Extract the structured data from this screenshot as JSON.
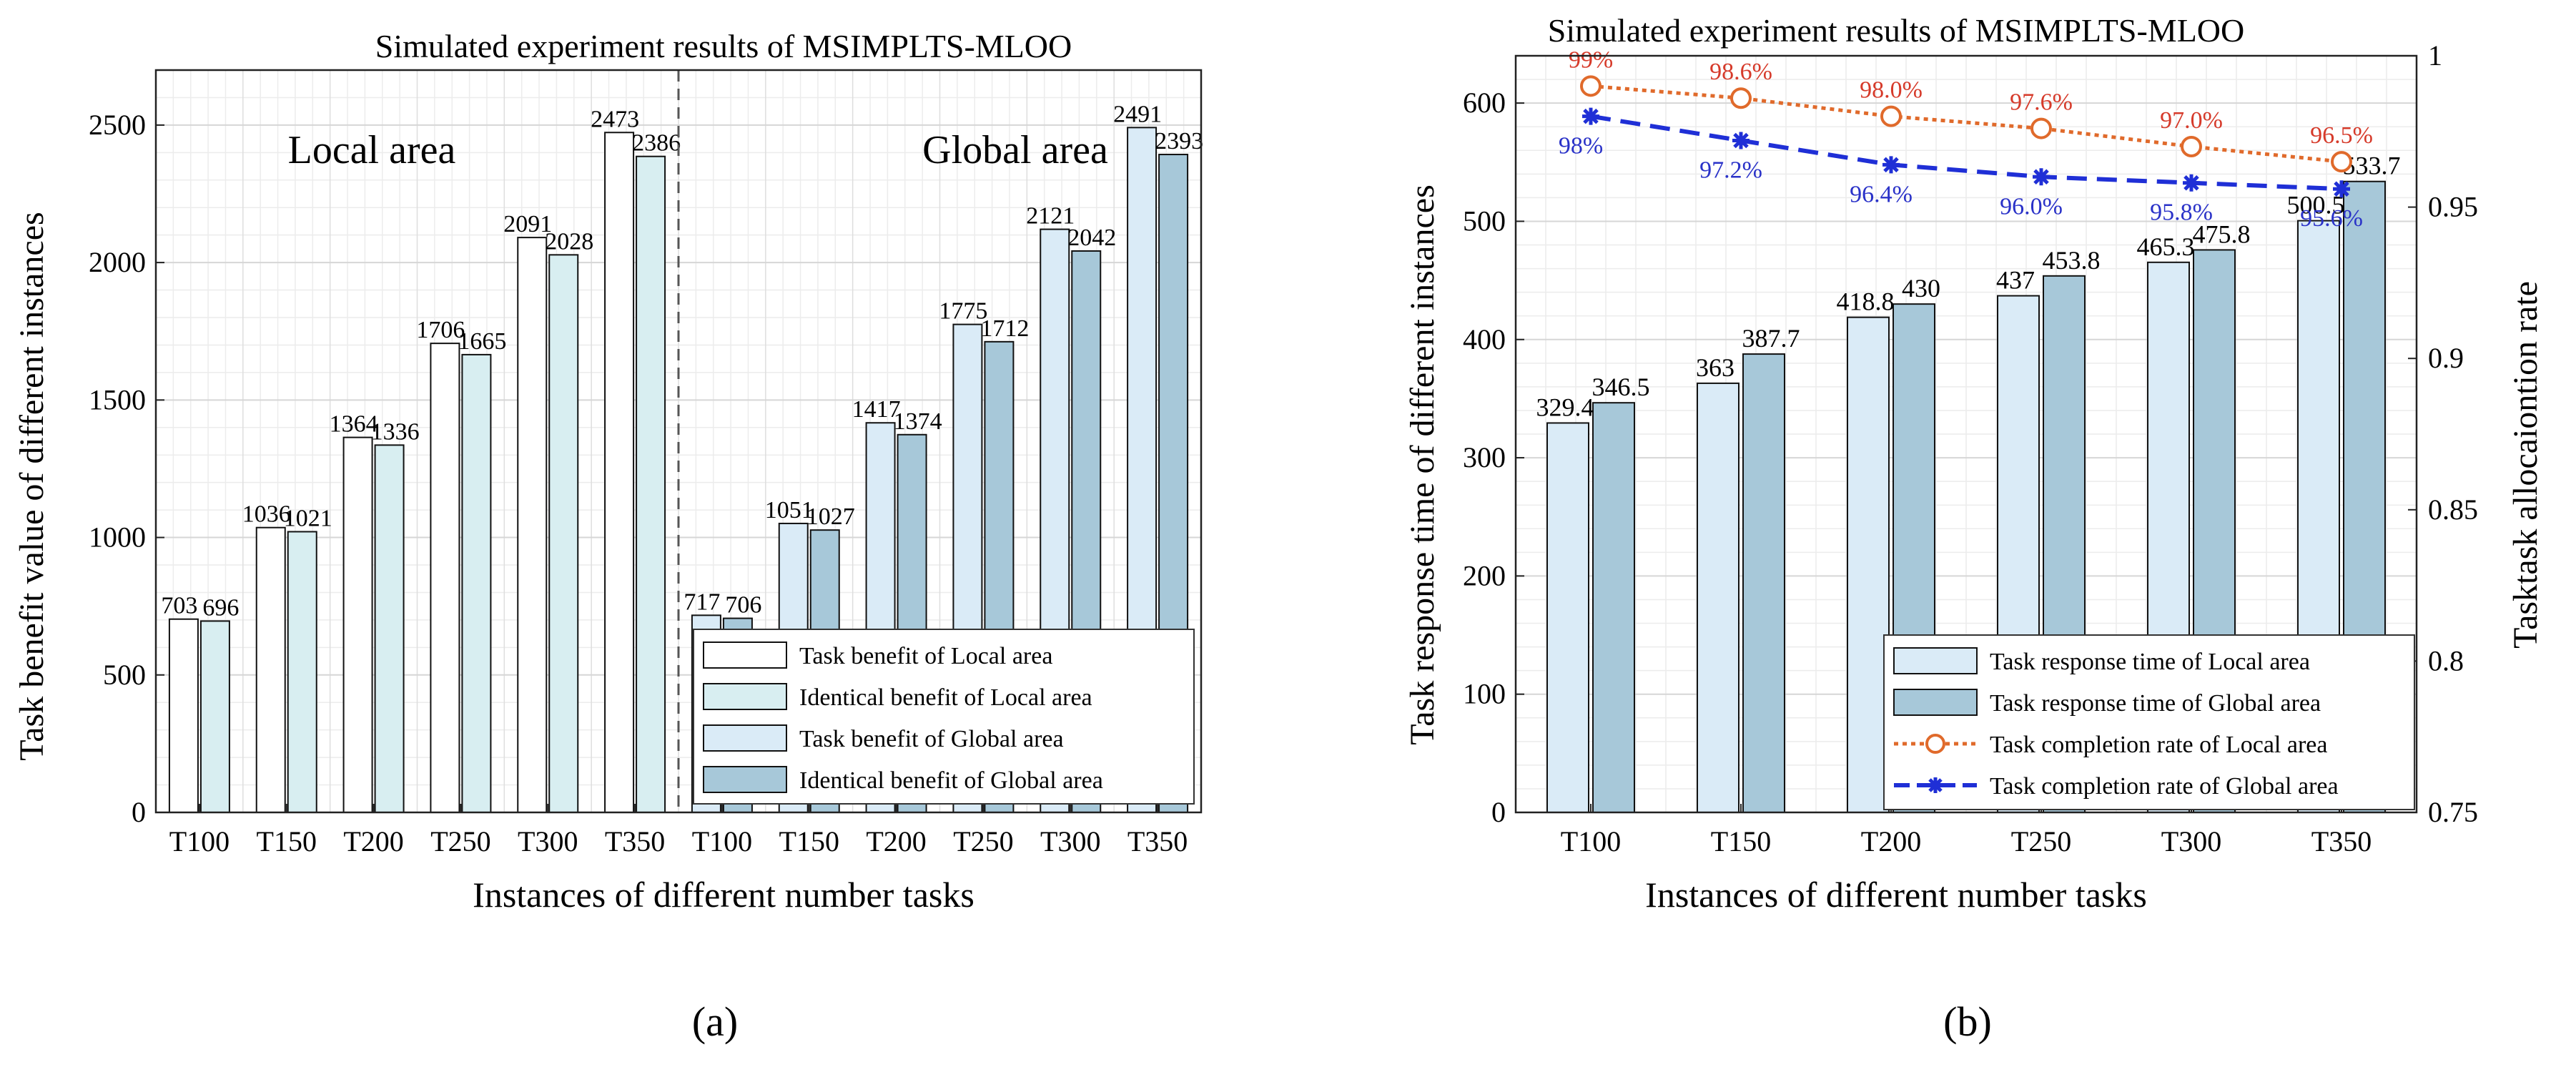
{
  "chart_data": [
    {
      "type": "bar",
      "panel_label": "(a)",
      "title": "Simulated experiment results of MSIMPLTS-MLOO",
      "xlabel": "Instances of different number tasks",
      "ylabel": "Task benefit value of different instances",
      "ylim": [
        0,
        2700
      ],
      "yticks": [
        0,
        500,
        1000,
        1500,
        2000,
        2500
      ],
      "grid": true,
      "categories": [
        "T100",
        "T150",
        "T200",
        "T250",
        "T300",
        "T350",
        "T100",
        "T150",
        "T200",
        "T250",
        "T300",
        "T350"
      ],
      "region_labels": [
        "Local area",
        "Global area"
      ],
      "series": [
        {
          "name": "Task benefit of Local area",
          "color": "#ffffff",
          "values": [
            703,
            1036,
            1364,
            1706,
            2091,
            2473,
            null,
            null,
            null,
            null,
            null,
            null
          ]
        },
        {
          "name": "Identical benefit of Local area",
          "color": "#d8eef1",
          "values": [
            696,
            1021,
            1336,
            1665,
            2028,
            2386,
            null,
            null,
            null,
            null,
            null,
            null
          ]
        },
        {
          "name": "Task benefit of Global area",
          "color": "#daebf7",
          "values": [
            null,
            null,
            null,
            null,
            null,
            null,
            717,
            1051,
            1417,
            1775,
            2121,
            2491
          ]
        },
        {
          "name": "Identical benefit of Global area",
          "color": "#a7c8d9",
          "values": [
            null,
            null,
            null,
            null,
            null,
            null,
            706,
            1027,
            1374,
            1712,
            2042,
            2393
          ]
        }
      ],
      "legend_position": "lower-right"
    },
    {
      "type": "bar+line",
      "panel_label": "(b)",
      "title": "Simulated experiment results of MSIMPLTS-MLOO",
      "xlabel": "Instances of different number tasks",
      "ylabel": "Task response time of different instances",
      "y2label": "Tasktask allocaiontion rate",
      "ylim": [
        0,
        640
      ],
      "yticks": [
        0,
        100,
        200,
        300,
        400,
        500,
        600
      ],
      "y2lim": [
        0.75,
        1.0
      ],
      "y2ticks": [
        "0.75",
        "0.8",
        "0.85",
        "0.9",
        "0.95",
        "1"
      ],
      "grid": true,
      "categories": [
        "T100",
        "T150",
        "T200",
        "T250",
        "T300",
        "T350"
      ],
      "series": [
        {
          "name": "Task response time of Local area",
          "color": "#daebf7",
          "values": [
            329.4,
            363,
            418.8,
            437,
            465.3,
            500.5
          ],
          "labels": [
            "329.4",
            "363",
            "418.8",
            "437",
            "465.3",
            "500.5"
          ]
        },
        {
          "name": "Task response time of Global area",
          "color": "#a7c8d9",
          "values": [
            346.5,
            387.7,
            430,
            453.8,
            475.8,
            533.7
          ],
          "labels": [
            "346.5",
            "387.7",
            "430",
            "453.8",
            "475.8",
            "533.7"
          ]
        }
      ],
      "line_series": [
        {
          "name": "Task completion rate of Local area",
          "color": "#e06a2b",
          "values": [
            0.99,
            0.986,
            0.98,
            0.976,
            0.97,
            0.965
          ],
          "labels": [
            "99%",
            "98.6%",
            "98.0%",
            "97.6%",
            "97.0%",
            "96.5%"
          ]
        },
        {
          "name": "Task completion rate of Global area",
          "color": "#1f2fd6",
          "values": [
            0.98,
            0.972,
            0.964,
            0.96,
            0.958,
            0.956
          ],
          "labels": [
            "98%",
            "97.2%",
            "96.4%",
            "96.0%",
            "95.8%",
            "95.6%"
          ]
        }
      ],
      "legend_position": "lower-right"
    }
  ]
}
